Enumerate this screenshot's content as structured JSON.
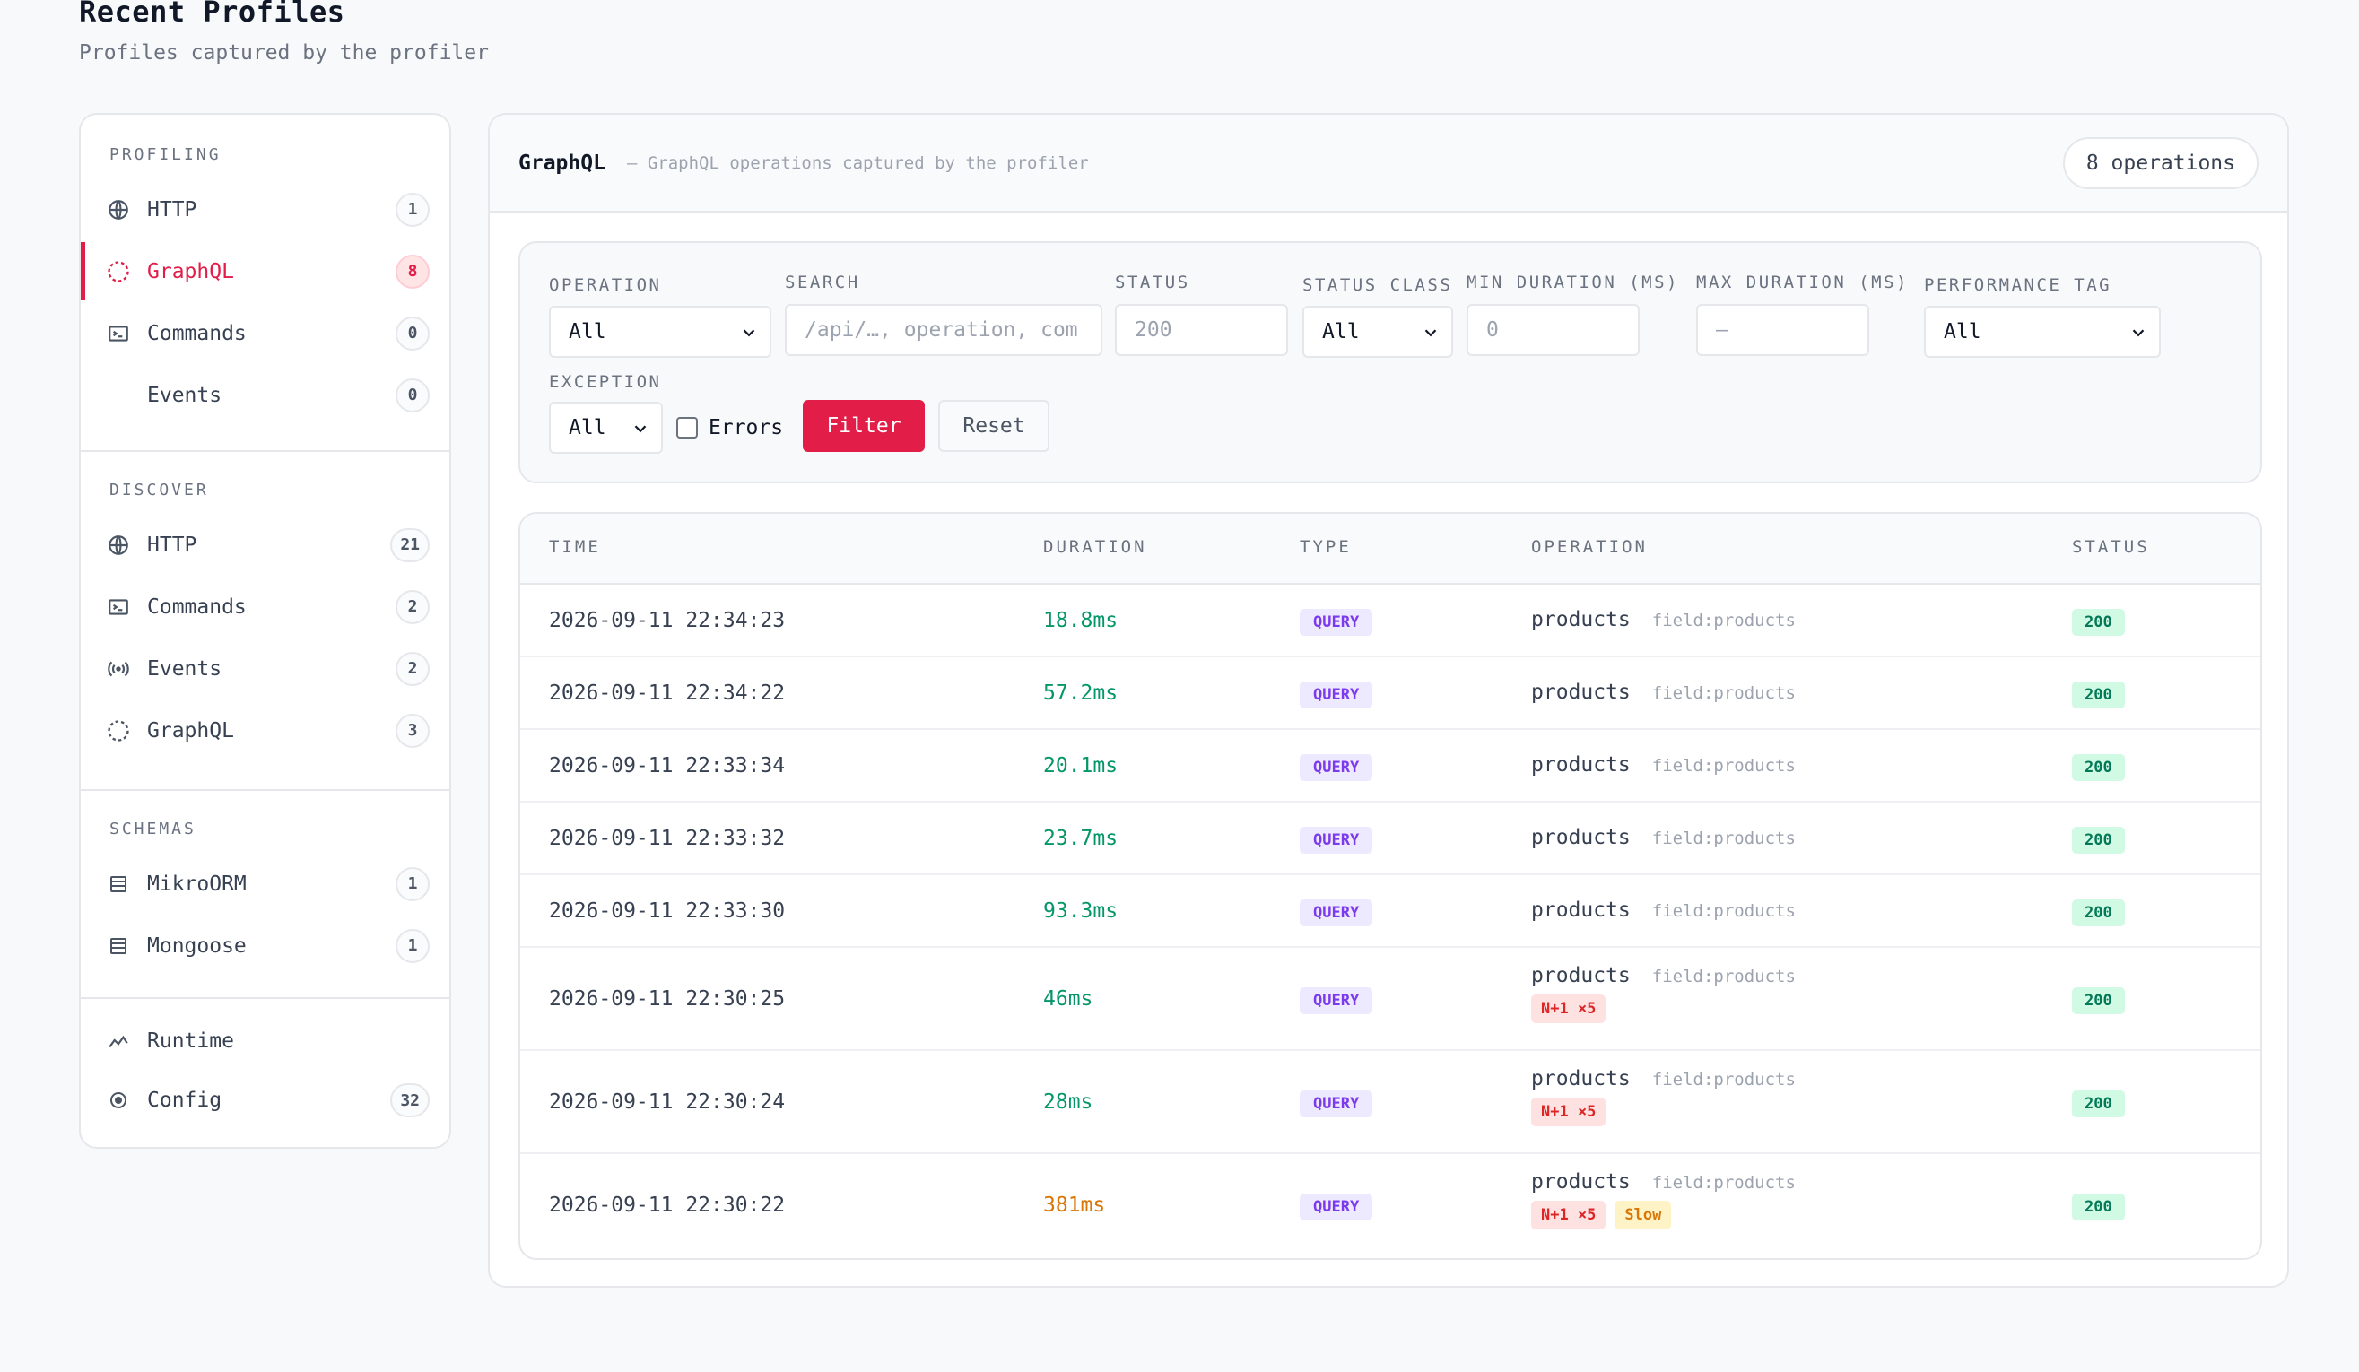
{
  "page": {
    "title": "Recent Profiles",
    "subtitle": "Profiles captured by the profiler"
  },
  "sidebar": {
    "profiling": {
      "title": "PROFILING",
      "items": [
        {
          "label": "HTTP",
          "count": "1",
          "icon": "globe-icon"
        },
        {
          "label": "GraphQL",
          "count": "8",
          "icon": "graphql-icon",
          "active": true
        },
        {
          "label": "Commands",
          "count": "0",
          "icon": "terminal-icon"
        },
        {
          "label": "Events",
          "count": "0",
          "icon": ""
        }
      ]
    },
    "discover": {
      "title": "DISCOVER",
      "items": [
        {
          "label": "HTTP",
          "count": "21",
          "icon": "globe-icon"
        },
        {
          "label": "Commands",
          "count": "2",
          "icon": "terminal-icon"
        },
        {
          "label": "Events",
          "count": "2",
          "icon": "broadcast-icon"
        },
        {
          "label": "GraphQL",
          "count": "3",
          "icon": "graphql-icon"
        }
      ]
    },
    "schemas": {
      "title": "SCHEMAS",
      "items": [
        {
          "label": "MikroORM",
          "count": "1",
          "icon": "table-icon"
        },
        {
          "label": "Mongoose",
          "count": "1",
          "icon": "table-icon"
        }
      ]
    },
    "other": {
      "items": [
        {
          "label": "Runtime",
          "icon": "activity-icon"
        },
        {
          "label": "Config",
          "count": "32",
          "icon": "config-icon"
        }
      ]
    }
  },
  "main": {
    "title": "GraphQL",
    "subtitle": "— GraphQL operations captured by the profiler",
    "count_label": "8 operations"
  },
  "filters": {
    "operation": {
      "label": "OPERATION",
      "value": "All"
    },
    "search": {
      "label": "SEARCH",
      "placeholder": "/api/…, operation, com"
    },
    "status": {
      "label": "STATUS",
      "placeholder": "200"
    },
    "status_class": {
      "label": "STATUS CLASS",
      "value": "All"
    },
    "min_duration": {
      "label": "MIN DURATION (MS)",
      "placeholder": "0"
    },
    "max_duration": {
      "label": "MAX DURATION (MS)",
      "placeholder": "—"
    },
    "performance_tag": {
      "label": "PERFORMANCE TAG",
      "value": "All"
    },
    "exception": {
      "label": "EXCEPTION",
      "value": "All"
    },
    "errors_label": "Errors",
    "filter_button": "Filter",
    "reset_button": "Reset"
  },
  "table": {
    "headers": {
      "time": "TIME",
      "duration": "DURATION",
      "type": "TYPE",
      "operation": "OPERATION",
      "status": "STATUS"
    },
    "rows": [
      {
        "time": "2026-09-11 22:34:23",
        "duration": "18.8ms",
        "speed": "fast",
        "type": "QUERY",
        "operation": "products",
        "field": "field:products",
        "tags": [],
        "status": "200"
      },
      {
        "time": "2026-09-11 22:34:22",
        "duration": "57.2ms",
        "speed": "fast",
        "type": "QUERY",
        "operation": "products",
        "field": "field:products",
        "tags": [],
        "status": "200"
      },
      {
        "time": "2026-09-11 22:33:34",
        "duration": "20.1ms",
        "speed": "fast",
        "type": "QUERY",
        "operation": "products",
        "field": "field:products",
        "tags": [],
        "status": "200"
      },
      {
        "time": "2026-09-11 22:33:32",
        "duration": "23.7ms",
        "speed": "fast",
        "type": "QUERY",
        "operation": "products",
        "field": "field:products",
        "tags": [],
        "status": "200"
      },
      {
        "time": "2026-09-11 22:33:30",
        "duration": "93.3ms",
        "speed": "fast",
        "type": "QUERY",
        "operation": "products",
        "field": "field:products",
        "tags": [],
        "status": "200"
      },
      {
        "time": "2026-09-11 22:30:25",
        "duration": "46ms",
        "speed": "fast",
        "type": "QUERY",
        "operation": "products",
        "field": "field:products",
        "tags": [
          "N+1 ×5"
        ],
        "status": "200"
      },
      {
        "time": "2026-09-11 22:30:24",
        "duration": "28ms",
        "speed": "fast",
        "type": "QUERY",
        "operation": "products",
        "field": "field:products",
        "tags": [
          "N+1 ×5"
        ],
        "status": "200"
      },
      {
        "time": "2026-09-11 22:30:22",
        "duration": "381ms",
        "speed": "slow",
        "type": "QUERY",
        "operation": "products",
        "field": "field:products",
        "tags": [
          "N+1 ×5",
          "Slow"
        ],
        "status": "200"
      }
    ]
  },
  "colors": {
    "accent": "#e11d48",
    "fast": "#059669",
    "slow": "#d97706",
    "query_badge": "#7c3aed",
    "status_ok": "#047857"
  }
}
